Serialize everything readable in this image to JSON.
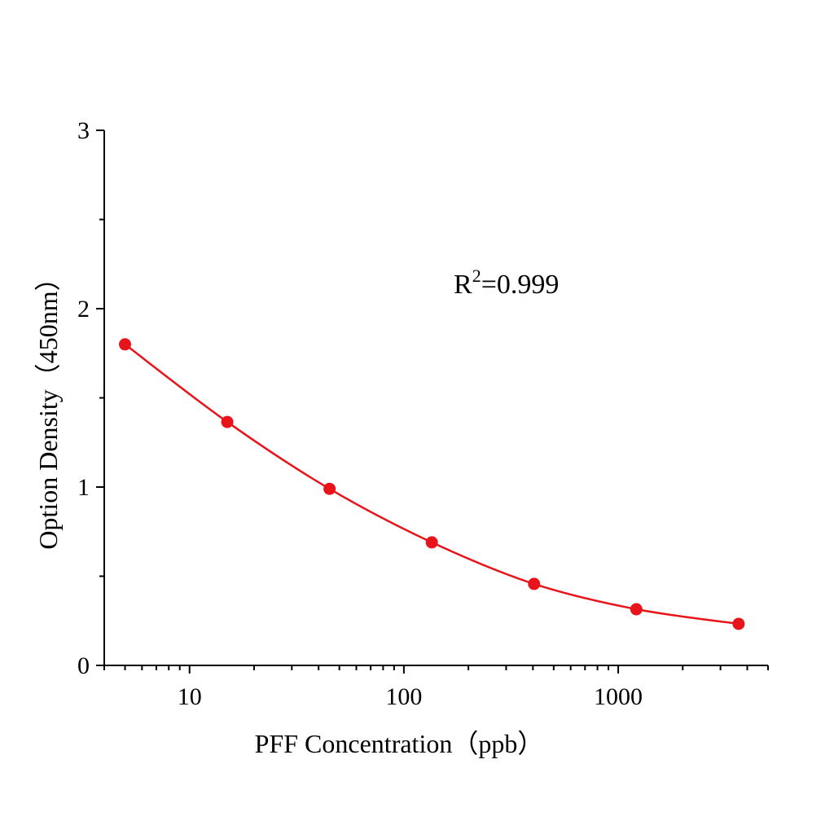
{
  "chart_data": {
    "type": "line",
    "xlabel": "PFF Concentration（ppb）",
    "ylabel": "Option Density（450nm）",
    "x_scale": "log",
    "xlim": [
      4,
      5000
    ],
    "ylim": [
      0,
      3
    ],
    "x_ticks": [
      10,
      100,
      1000
    ],
    "x_tick_labels": [
      "10",
      "100",
      "1000"
    ],
    "y_ticks": [
      0,
      1,
      2,
      3
    ],
    "y_tick_labels": [
      "0",
      "1",
      "2",
      "3"
    ],
    "grid": false,
    "annotation": {
      "base": "R",
      "sup": "2",
      "rest": "=0.999"
    },
    "series": [
      {
        "color": "#e8141b",
        "x": [
          5,
          15,
          45,
          135,
          405,
          1215,
          3645
        ],
        "y": [
          1.8,
          1.365,
          0.99,
          0.69,
          0.457,
          0.315,
          0.233
        ]
      }
    ]
  }
}
